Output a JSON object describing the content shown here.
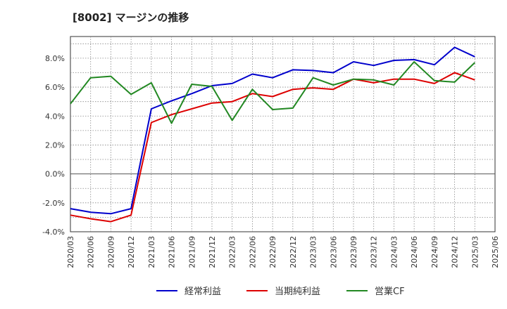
{
  "chart_title": "[8002]  マージンの推移",
  "chart_data": {
    "type": "line",
    "title": "[8002]  マージンの推移",
    "xlabel": "",
    "ylabel": "",
    "ylim": [
      -4.0,
      9.5
    ],
    "yticks": [
      "-4.0%",
      "-2.0%",
      "0.0%",
      "2.0%",
      "4.0%",
      "6.0%",
      "8.0%"
    ],
    "ytick_values": [
      -4,
      -2,
      0,
      2,
      4,
      6,
      8
    ],
    "x": [
      "2020/03",
      "2020/06",
      "2020/09",
      "2020/12",
      "2021/03",
      "2021/06",
      "2021/09",
      "2021/12",
      "2022/03",
      "2022/06",
      "2022/09",
      "2022/12",
      "2023/03",
      "2023/06",
      "2023/09",
      "2023/12",
      "2024/03",
      "2024/06",
      "2024/09",
      "2024/12",
      "2025/03",
      "2025/06"
    ],
    "grid": true,
    "legend_position": "bottom",
    "series": [
      {
        "name": "経常利益",
        "color": "#0000cc",
        "values": [
          -2.4,
          -2.65,
          -2.75,
          -2.4,
          4.5,
          5.05,
          5.55,
          6.1,
          6.25,
          6.9,
          6.65,
          7.2,
          7.15,
          7.0,
          7.75,
          7.5,
          7.85,
          7.9,
          7.55,
          8.75,
          8.1,
          null
        ]
      },
      {
        "name": "当期純利益",
        "color": "#dd0000",
        "values": [
          -2.85,
          -3.1,
          -3.3,
          -2.85,
          3.55,
          4.1,
          4.5,
          4.9,
          5.0,
          5.55,
          5.35,
          5.85,
          5.95,
          5.85,
          6.55,
          6.3,
          6.55,
          6.55,
          6.25,
          7.0,
          6.5,
          null
        ]
      },
      {
        "name": "営業CF",
        "color": "#228822",
        "values": [
          4.85,
          6.65,
          6.75,
          5.5,
          6.3,
          3.5,
          6.2,
          6.05,
          3.7,
          5.85,
          4.45,
          4.55,
          6.65,
          6.15,
          6.55,
          6.5,
          6.15,
          7.75,
          6.45,
          6.35,
          7.7,
          null
        ]
      }
    ]
  }
}
